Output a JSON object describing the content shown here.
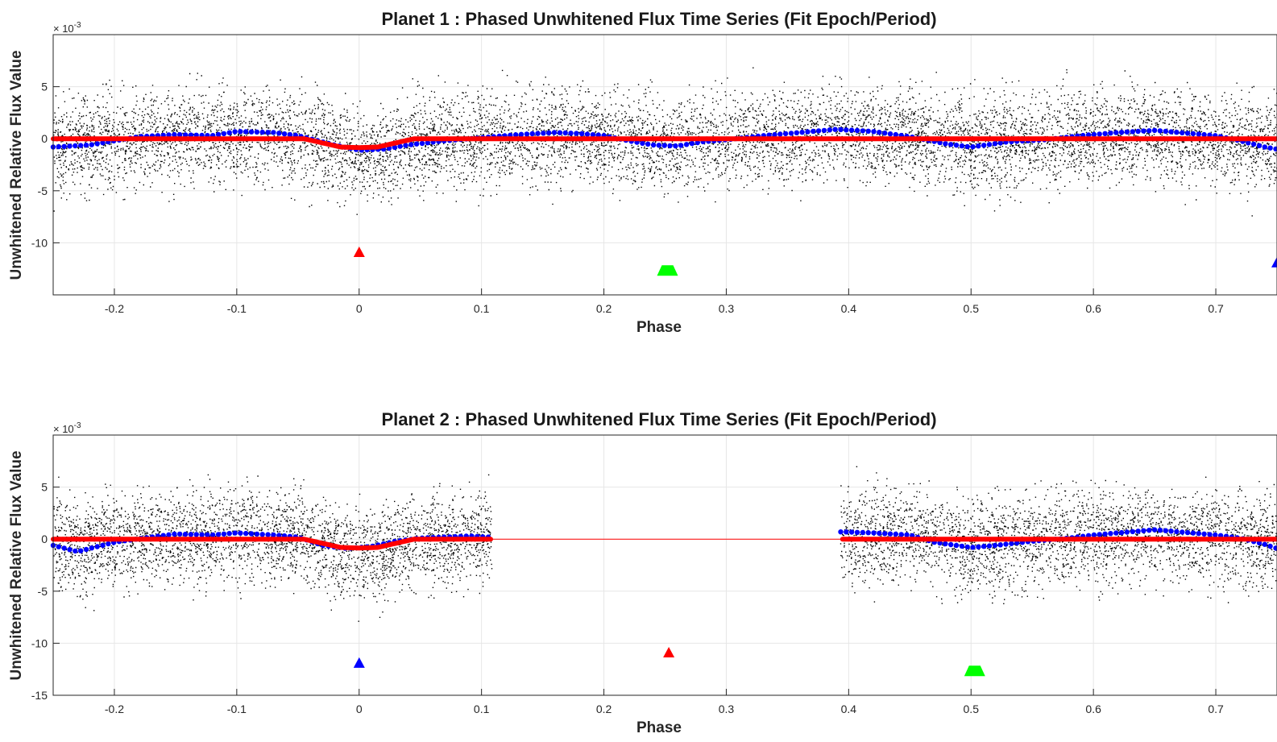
{
  "figure": {
    "background": "#ffffff",
    "colors": {
      "raw": "#000000",
      "binned": "#0000ff",
      "model": "#ff0000",
      "marker_red": "#ff0000",
      "marker_green": "#00ff00",
      "marker_blue": "#0000ff"
    }
  },
  "chart_data": [
    {
      "type": "scatter",
      "title": "Planet 1 : Phased Unwhitened Flux Time Series (Fit Epoch/Period)",
      "xlabel": "Phase",
      "ylabel": "Unwhitened Relative Flux Value",
      "y_multiplier_label": "× 10",
      "y_multiplier_exponent": "-3",
      "xlim": [
        -0.25,
        0.75
      ],
      "ylim": [
        -15,
        10
      ],
      "xticks": [
        -0.2,
        -0.1,
        0,
        0.1,
        0.2,
        0.3,
        0.4,
        0.5,
        0.6,
        0.7
      ],
      "xtick_labels": [
        "-0.2",
        "-0.1",
        "0",
        "0.1",
        "0.2",
        "0.3",
        "0.4",
        "0.5",
        "0.6",
        "0.7"
      ],
      "yticks": [
        -10,
        -5,
        0,
        5
      ],
      "ytick_labels": [
        "-10",
        "-5",
        "0",
        "5"
      ],
      "grid": true,
      "raw_flux": {
        "name": "",
        "color": "#000000",
        "coverage": [
          [
            -0.25,
            0.75
          ]
        ],
        "mean": 0,
        "std": 2.2,
        "npoints": 9000
      },
      "binned_flux": {
        "name": "",
        "color": "#0000ff",
        "x": [
          -0.25,
          -0.22,
          -0.18,
          -0.15,
          -0.12,
          -0.1,
          -0.07,
          -0.05,
          -0.02,
          0.0,
          0.02,
          0.04,
          0.07,
          0.1,
          0.13,
          0.16,
          0.18,
          0.2,
          0.22,
          0.24,
          0.26,
          0.28,
          0.3,
          0.33,
          0.36,
          0.39,
          0.42,
          0.45,
          0.48,
          0.5,
          0.53,
          0.56,
          0.59,
          0.62,
          0.65,
          0.68,
          0.7,
          0.72,
          0.74,
          0.75
        ],
        "y": [
          -0.8,
          -0.6,
          0.2,
          0.4,
          0.3,
          0.7,
          0.6,
          0.3,
          -0.6,
          -1.1,
          -1.0,
          -0.6,
          -0.2,
          0.1,
          0.4,
          0.6,
          0.5,
          0.3,
          -0.2,
          -0.6,
          -0.7,
          -0.3,
          -0.1,
          0.3,
          0.6,
          0.9,
          0.7,
          0.2,
          -0.5,
          -0.8,
          -0.3,
          -0.1,
          0.3,
          0.6,
          0.8,
          0.5,
          0.3,
          -0.2,
          -0.8,
          -1.0
        ]
      },
      "model": {
        "name": "",
        "color": "#ff0000",
        "x": [
          -0.25,
          -0.045,
          -0.03,
          -0.015,
          0.0,
          0.015,
          0.03,
          0.045,
          0.75
        ],
        "y": [
          0,
          0,
          -0.4,
          -0.8,
          -0.85,
          -0.8,
          -0.4,
          0,
          0
        ]
      },
      "gaps": [],
      "markers": [
        {
          "x": 0.0,
          "y": -10.9,
          "color": "#ff0000",
          "size": "small"
        },
        {
          "x": 0.252,
          "y": -12.7,
          "color": "#00ff00",
          "size": "large"
        },
        {
          "x": 0.75,
          "y": -11.9,
          "color": "#0000ff",
          "size": "small"
        }
      ]
    },
    {
      "type": "scatter",
      "title": "Planet 2 : Phased Unwhitened Flux Time Series (Fit Epoch/Period)",
      "xlabel": "Phase",
      "ylabel": "Unwhitened Relative Flux Value",
      "y_multiplier_label": "× 10",
      "y_multiplier_exponent": "-3",
      "xlim": [
        -0.25,
        0.75
      ],
      "ylim": [
        -15,
        10
      ],
      "xticks": [
        -0.2,
        -0.1,
        0,
        0.1,
        0.2,
        0.3,
        0.4,
        0.5,
        0.6,
        0.7
      ],
      "xtick_labels": [
        "-0.2",
        "-0.1",
        "0",
        "0.1",
        "0.2",
        "0.3",
        "0.4",
        "0.5",
        "0.6",
        "0.7"
      ],
      "yticks": [
        -15,
        -10,
        -5,
        0,
        5
      ],
      "ytick_labels": [
        "-15",
        "-10",
        "-5",
        "0",
        "5"
      ],
      "grid": true,
      "raw_flux": {
        "name": "",
        "color": "#000000",
        "coverage": [
          [
            -0.25,
            0.108
          ],
          [
            0.393,
            0.75
          ]
        ],
        "mean": 0,
        "std": 2.2,
        "npoints": 6500
      },
      "binned_flux": {
        "name": "",
        "color": "#0000ff",
        "x": [
          -0.25,
          -0.23,
          -0.2,
          -0.17,
          -0.15,
          -0.12,
          -0.1,
          -0.07,
          -0.05,
          -0.03,
          -0.01,
          0.01,
          0.03,
          0.05,
          0.07,
          0.09,
          0.105,
          0.395,
          0.42,
          0.45,
          0.47,
          0.5,
          0.52,
          0.55,
          0.58,
          0.6,
          0.62,
          0.65,
          0.67,
          0.7,
          0.72,
          0.74,
          0.75
        ],
        "y": [
          -0.6,
          -1.2,
          -0.3,
          0.2,
          0.5,
          0.4,
          0.6,
          0.4,
          0.2,
          -0.6,
          -0.9,
          -0.7,
          -0.2,
          0.1,
          0.2,
          0.3,
          0.2,
          0.7,
          0.6,
          0.4,
          -0.3,
          -0.8,
          -0.6,
          -0.2,
          0.1,
          0.4,
          0.6,
          0.9,
          0.7,
          0.4,
          0.1,
          -0.5,
          -0.9
        ]
      },
      "model": {
        "name": "",
        "color": "#ff0000",
        "x": [
          -0.25,
          -0.045,
          -0.03,
          -0.015,
          0.0,
          0.015,
          0.03,
          0.045,
          0.75
        ],
        "y": [
          0,
          0,
          -0.4,
          -0.8,
          -0.85,
          -0.8,
          -0.4,
          0,
          0
        ]
      },
      "gaps": [
        [
          0.108,
          0.393
        ]
      ],
      "markers": [
        {
          "x": 0.0,
          "y": -11.9,
          "color": "#0000ff",
          "size": "small"
        },
        {
          "x": 0.253,
          "y": -10.9,
          "color": "#ff0000",
          "size": "small"
        },
        {
          "x": 0.503,
          "y": -12.7,
          "color": "#00ff00",
          "size": "large"
        }
      ]
    }
  ]
}
